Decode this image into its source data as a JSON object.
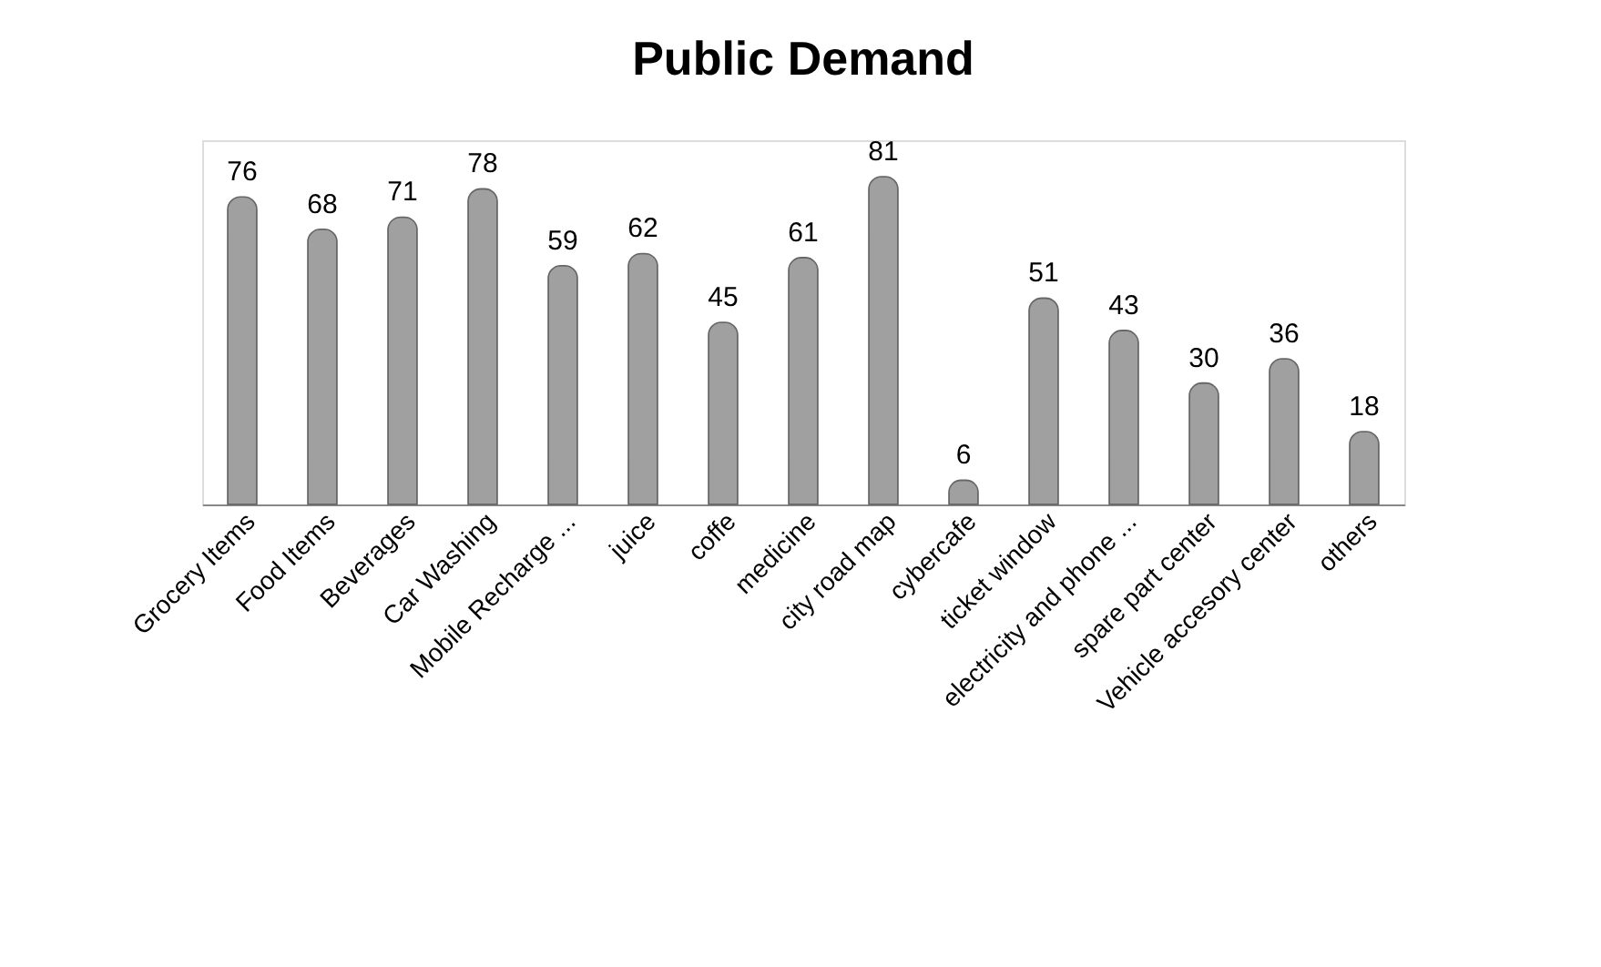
{
  "chart_data": {
    "type": "bar",
    "title": "Public Demand",
    "categories": [
      "Grocery Items",
      "Food Items",
      "Beverages",
      "Car Washing",
      "Mobile Recharge ...",
      "juice",
      "coffe",
      "medicine",
      "city road map",
      "cybercafe",
      "ticket window",
      "electricity and phone ...",
      "spare part center",
      "Vehicle accesory center",
      "others"
    ],
    "values": [
      76,
      68,
      71,
      78,
      59,
      62,
      45,
      61,
      81,
      6,
      51,
      43,
      30,
      36,
      18
    ],
    "color": "#a0a0a0",
    "data_labels": true
  }
}
